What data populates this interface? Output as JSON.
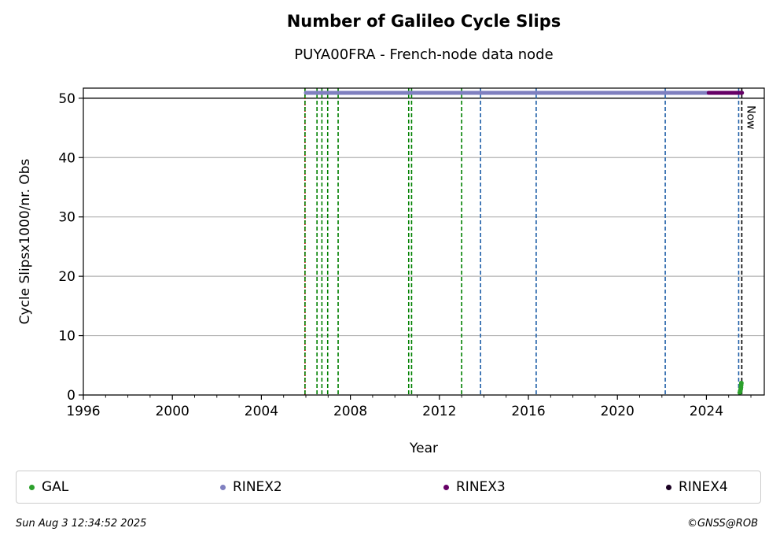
{
  "chart_data": {
    "type": "scatter",
    "title": "Number of Galileo Cycle Slips",
    "subtitle": "PUYA00FRA - French-node data node",
    "xlabel": "Year",
    "ylabel": "Cycle Slipsx1000/nr. Obs",
    "xlim": [
      1996,
      2026.6
    ],
    "ylim": [
      0,
      51.7
    ],
    "xticks": [
      "1996",
      "2000",
      "2004",
      "2008",
      "2012",
      "2016",
      "2020",
      "2024"
    ],
    "yticks": [
      "0",
      "10",
      "20",
      "30",
      "40",
      "50"
    ],
    "grid": "horizontal",
    "hline": 50,
    "now_label": "Now",
    "now_x": 2025.59,
    "vlines": [
      {
        "x": 2005.96,
        "color": "#cc0000",
        "style": "dotted"
      },
      {
        "x": 2005.96,
        "color": "#008000",
        "style": "dashed"
      },
      {
        "x": 2006.5,
        "color": "#008000",
        "style": "dashed"
      },
      {
        "x": 2006.72,
        "color": "#008000",
        "style": "dashed"
      },
      {
        "x": 2006.98,
        "color": "#008000",
        "style": "dashed"
      },
      {
        "x": 2007.45,
        "color": "#008000",
        "style": "dashed"
      },
      {
        "x": 2010.62,
        "color": "#008000",
        "style": "dashed"
      },
      {
        "x": 2010.75,
        "color": "#008000",
        "style": "dashed"
      },
      {
        "x": 2013.0,
        "color": "#008000",
        "style": "dashed"
      },
      {
        "x": 2013.85,
        "color": "#1f5fa8",
        "style": "dashed"
      },
      {
        "x": 2016.35,
        "color": "#1f5fa8",
        "style": "dashed"
      },
      {
        "x": 2022.15,
        "color": "#1f5fa8",
        "style": "dashed"
      },
      {
        "x": 2025.45,
        "color": "#1f5fa8",
        "style": "dashed"
      }
    ],
    "series": [
      {
        "name": "GAL",
        "color": "#2ca02c",
        "type": "points",
        "x": [
          2025.5,
          2025.52,
          2025.54,
          2025.55,
          2025.56,
          2025.57
        ],
        "y": [
          0.4,
          0.7,
          1.0,
          1.3,
          1.7,
          2.0
        ]
      },
      {
        "name": "RINEX2",
        "color": "#8080c0",
        "type": "band",
        "x_range": [
          2006.0,
          2025.6
        ],
        "y": 50.9
      },
      {
        "name": "RINEX3",
        "color": "#660066",
        "type": "band",
        "x_range": [
          2024.1,
          2025.6
        ],
        "y": 50.9
      },
      {
        "name": "RINEX4",
        "color": "#1a0022",
        "type": "points",
        "x": [],
        "y": []
      }
    ]
  },
  "legend": [
    {
      "name": "GAL",
      "color": "#2ca02c"
    },
    {
      "name": "RINEX2",
      "color": "#8080c0"
    },
    {
      "name": "RINEX3",
      "color": "#660066"
    },
    {
      "name": "RINEX4",
      "color": "#1a0022"
    }
  ],
  "footer": {
    "timestamp": "Sun Aug  3 12:34:52 2025",
    "credit": "©GNSS@ROB"
  }
}
